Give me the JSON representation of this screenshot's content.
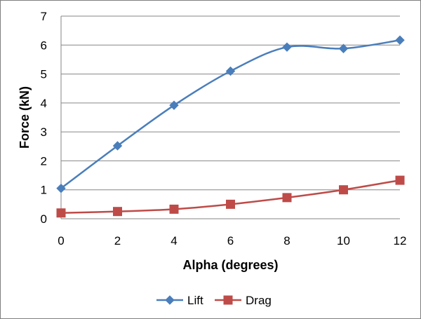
{
  "chart_data": {
    "type": "line",
    "x": [
      0,
      2,
      4,
      6,
      8,
      10,
      12
    ],
    "series": [
      {
        "name": "Lift",
        "values": [
          1.05,
          2.52,
          3.92,
          5.1,
          5.93,
          5.88,
          6.17
        ],
        "color": "#4a7ebb",
        "marker": "diamond"
      },
      {
        "name": "Drag",
        "values": [
          0.2,
          0.25,
          0.33,
          0.5,
          0.73,
          1.0,
          1.33
        ],
        "color": "#be4b48",
        "marker": "square"
      }
    ],
    "xlabel": "Alpha (degrees)",
    "ylabel": "Force (kN)",
    "xlim": [
      0,
      12
    ],
    "ylim": [
      0,
      7
    ],
    "x_ticks": [
      "0",
      "2",
      "4",
      "6",
      "8",
      "10",
      "12"
    ],
    "y_ticks": [
      "0",
      "1",
      "2",
      "3",
      "4",
      "5",
      "6",
      "7"
    ],
    "grid": "horizontal",
    "legend_position": "bottom",
    "smoothed": true
  }
}
